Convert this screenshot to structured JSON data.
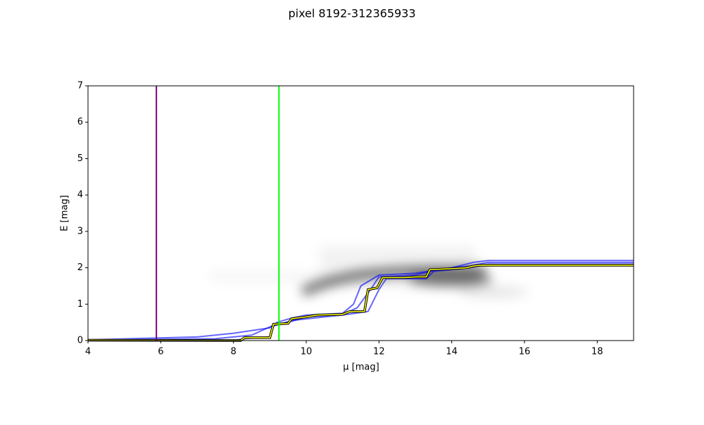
{
  "chart_data": {
    "type": "line",
    "title": "pixel 8192-312365933",
    "xlabel": "μ [mag]",
    "ylabel": "E [mag]",
    "xlim": [
      4,
      19
    ],
    "xticks": [
      4,
      6,
      8,
      10,
      12,
      14,
      16,
      18
    ],
    "ylim": [
      0,
      7
    ],
    "yticks": [
      0,
      1,
      2,
      3,
      4,
      5,
      6,
      7
    ],
    "vlines": [
      {
        "x": 5.88,
        "color": "#800080"
      },
      {
        "x": 9.25,
        "color": "#00ff00"
      }
    ],
    "series": [
      {
        "color": "#0000ff",
        "x": [
          4,
          7,
          8,
          9,
          9.2,
          9.6,
          10,
          11,
          11.3,
          11.5,
          12,
          13,
          14,
          14.6,
          15,
          19
        ],
        "values": [
          0.02,
          0.1,
          0.2,
          0.35,
          0.5,
          0.62,
          0.7,
          0.75,
          1.0,
          1.5,
          1.8,
          1.85,
          2.0,
          2.15,
          2.2,
          2.2
        ]
      },
      {
        "color": "#0000ff",
        "x": [
          4,
          7.5,
          8.5,
          9.1,
          9.5,
          10,
          11,
          11.4,
          11.8,
          12,
          13,
          13.6,
          14.5,
          15,
          19
        ],
        "values": [
          0.01,
          0.05,
          0.15,
          0.42,
          0.5,
          0.65,
          0.72,
          0.9,
          1.45,
          1.75,
          1.8,
          1.95,
          2.05,
          2.15,
          2.15
        ]
      },
      {
        "color": "#0000ff",
        "x": [
          4,
          8,
          8.3,
          9,
          9.1,
          9.6,
          10.5,
          11,
          11.7,
          12,
          12.2,
          13.3,
          13.5,
          14.5,
          15,
          19
        ],
        "values": [
          0,
          0,
          0.05,
          0.1,
          0.4,
          0.55,
          0.65,
          0.7,
          0.8,
          1.4,
          1.7,
          1.7,
          1.9,
          2.0,
          2.1,
          2.1
        ]
      },
      {
        "color": "#ffff00",
        "edgecolor": "#000000",
        "x": [
          4,
          8.2,
          8.3,
          9.0,
          9.1,
          9.5,
          9.6,
          10,
          10.3,
          11,
          11.2,
          11.6,
          11.7,
          11.95,
          12.1,
          12.7,
          13,
          13.3,
          13.4,
          13.9,
          14.4,
          14.6,
          14.8,
          19
        ],
        "values": [
          0.01,
          0,
          0.08,
          0.08,
          0.45,
          0.47,
          0.6,
          0.65,
          0.7,
          0.72,
          0.8,
          0.8,
          1.4,
          1.45,
          1.73,
          1.73,
          1.75,
          1.75,
          1.95,
          1.97,
          2.0,
          2.05,
          2.07,
          2.07
        ]
      }
    ]
  }
}
